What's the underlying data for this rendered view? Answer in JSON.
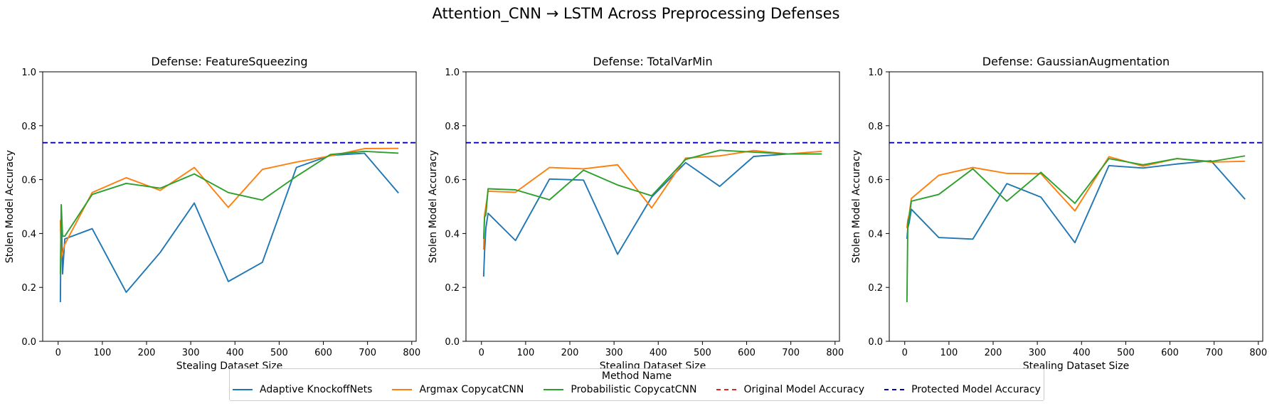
{
  "figure_title": "Attention_CNN → LSTM Across Preprocessing Defenses",
  "legend": {
    "title": "Method Name",
    "items": [
      {
        "label": "Adaptive KnockoffNets",
        "color": "#1f77b4",
        "style": "solid"
      },
      {
        "label": "Argmax CopycatCNN",
        "color": "#ff7f0e",
        "style": "solid"
      },
      {
        "label": "Probabilistic CopycatCNN",
        "color": "#2ca02c",
        "style": "solid"
      },
      {
        "label": "Original Model Accuracy",
        "color": "#d62728",
        "style": "dashed"
      },
      {
        "label": "Protected Model Accuracy",
        "color": "#0000aa",
        "style": "dashed"
      }
    ]
  },
  "chart_data": [
    {
      "type": "line",
      "title": "Defense: FeatureSqueezing",
      "xlabel": "Stealing Dataset Size",
      "ylabel": "Stolen Model Accuracy",
      "xlim": [
        -35,
        810
      ],
      "ylim": [
        0.0,
        1.0
      ],
      "xticks": [
        0,
        100,
        200,
        300,
        400,
        500,
        600,
        700,
        800
      ],
      "yticks": [
        0.0,
        0.2,
        0.4,
        0.6,
        0.8,
        1.0
      ],
      "hlines": [
        {
          "name": "Protected Model Accuracy",
          "y": 0.737
        }
      ],
      "series": [
        {
          "name": "Adaptive KnockoffNets",
          "x": [
            5,
            7,
            10,
            15,
            77,
            154,
            231,
            308,
            385,
            462,
            539,
            616,
            693,
            770
          ],
          "y": [
            0.145,
            0.5,
            0.25,
            0.38,
            0.418,
            0.182,
            0.33,
            0.513,
            0.222,
            0.293,
            0.645,
            0.69,
            0.698,
            0.55
          ]
        },
        {
          "name": "Argmax CopycatCNN",
          "x": [
            5,
            7,
            10,
            15,
            77,
            154,
            231,
            308,
            385,
            462,
            539,
            616,
            693,
            770
          ],
          "y": [
            0.45,
            0.31,
            0.33,
            0.36,
            0.552,
            0.607,
            0.56,
            0.645,
            0.497,
            0.638,
            0.665,
            0.688,
            0.715,
            0.716
          ]
        },
        {
          "name": "Probabilistic CopycatCNN",
          "x": [
            5,
            7,
            10,
            15,
            77,
            154,
            231,
            308,
            385,
            462,
            539,
            616,
            693,
            770
          ],
          "y": [
            0.25,
            0.507,
            0.39,
            0.39,
            0.545,
            0.586,
            0.568,
            0.621,
            0.552,
            0.524,
            0.612,
            0.693,
            0.705,
            0.698
          ]
        }
      ]
    },
    {
      "type": "line",
      "title": "Defense: TotalVarMin",
      "xlabel": "Stealing Dataset Size",
      "ylabel": "Stolen Model Accuracy",
      "xlim": [
        -35,
        810
      ],
      "ylim": [
        0.0,
        1.0
      ],
      "xticks": [
        0,
        100,
        200,
        300,
        400,
        500,
        600,
        700,
        800
      ],
      "yticks": [
        0.0,
        0.2,
        0.4,
        0.6,
        0.8,
        1.0
      ],
      "hlines": [
        {
          "name": "Protected Model Accuracy",
          "y": 0.737
        }
      ],
      "series": [
        {
          "name": "Adaptive KnockoffNets",
          "x": [
            5,
            7,
            10,
            15,
            77,
            154,
            231,
            308,
            385,
            462,
            539,
            616,
            693,
            770
          ],
          "y": [
            0.24,
            0.33,
            0.42,
            0.475,
            0.374,
            0.602,
            0.598,
            0.323,
            0.535,
            0.663,
            0.575,
            0.686,
            0.695,
            0.695
          ]
        },
        {
          "name": "Argmax CopycatCNN",
          "x": [
            5,
            7,
            10,
            15,
            77,
            154,
            231,
            308,
            385,
            462,
            539,
            616,
            693,
            770
          ],
          "y": [
            0.34,
            0.47,
            0.5,
            0.557,
            0.553,
            0.645,
            0.64,
            0.655,
            0.495,
            0.68,
            0.688,
            0.708,
            0.695,
            0.705
          ]
        },
        {
          "name": "Probabilistic CopycatCNN",
          "x": [
            5,
            7,
            10,
            15,
            77,
            154,
            231,
            308,
            385,
            462,
            539,
            616,
            693,
            770
          ],
          "y": [
            0.38,
            0.46,
            0.47,
            0.566,
            0.562,
            0.525,
            0.635,
            0.58,
            0.54,
            0.675,
            0.709,
            0.702,
            0.695,
            0.695
          ]
        }
      ]
    },
    {
      "type": "line",
      "title": "Defense: GaussianAugmentation",
      "xlabel": "Stealing Dataset Size",
      "ylabel": "Stolen Model Accuracy",
      "xlim": [
        -35,
        810
      ],
      "ylim": [
        0.0,
        1.0
      ],
      "xticks": [
        0,
        100,
        200,
        300,
        400,
        500,
        600,
        700,
        800
      ],
      "yticks": [
        0.0,
        0.2,
        0.4,
        0.6,
        0.8,
        1.0
      ],
      "hlines": [
        {
          "name": "Protected Model Accuracy",
          "y": 0.737
        }
      ],
      "series": [
        {
          "name": "Adaptive KnockoffNets",
          "x": [
            5,
            7,
            10,
            15,
            77,
            154,
            231,
            308,
            385,
            462,
            539,
            616,
            693,
            770
          ],
          "y": [
            0.38,
            0.42,
            0.44,
            0.49,
            0.385,
            0.379,
            0.585,
            0.535,
            0.366,
            0.652,
            0.643,
            0.658,
            0.67,
            0.527
          ]
        },
        {
          "name": "Argmax CopycatCNN",
          "x": [
            5,
            7,
            10,
            15,
            77,
            154,
            231,
            308,
            385,
            462,
            539,
            616,
            693,
            770
          ],
          "y": [
            0.42,
            0.45,
            0.47,
            0.53,
            0.616,
            0.645,
            0.623,
            0.622,
            0.484,
            0.685,
            0.65,
            0.678,
            0.665,
            0.668
          ]
        },
        {
          "name": "Probabilistic CopycatCNN",
          "x": [
            5,
            7,
            10,
            15,
            77,
            154,
            231,
            308,
            385,
            462,
            539,
            616,
            693,
            770
          ],
          "y": [
            0.145,
            0.44,
            0.46,
            0.52,
            0.545,
            0.64,
            0.52,
            0.627,
            0.512,
            0.678,
            0.655,
            0.678,
            0.667,
            0.688
          ]
        }
      ]
    }
  ]
}
